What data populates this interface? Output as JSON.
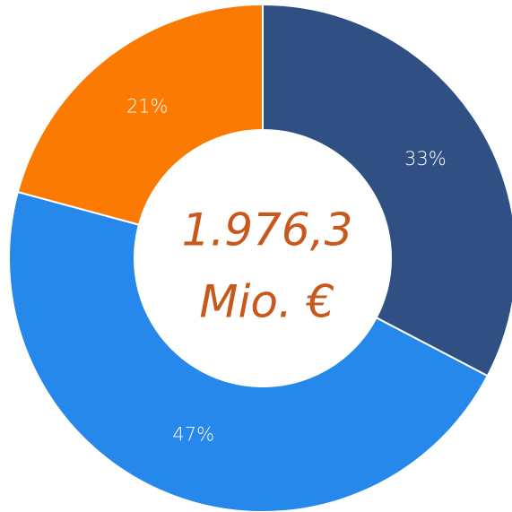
{
  "chart_data": {
    "type": "donut",
    "values": [
      33,
      47,
      21
    ],
    "value_labels": [
      "33%",
      "47%",
      "21%"
    ],
    "colors": [
      "#305084",
      "#2688ea",
      "#fb7a02"
    ],
    "center_label": [
      "1.976,3",
      "Mio. €"
    ]
  }
}
